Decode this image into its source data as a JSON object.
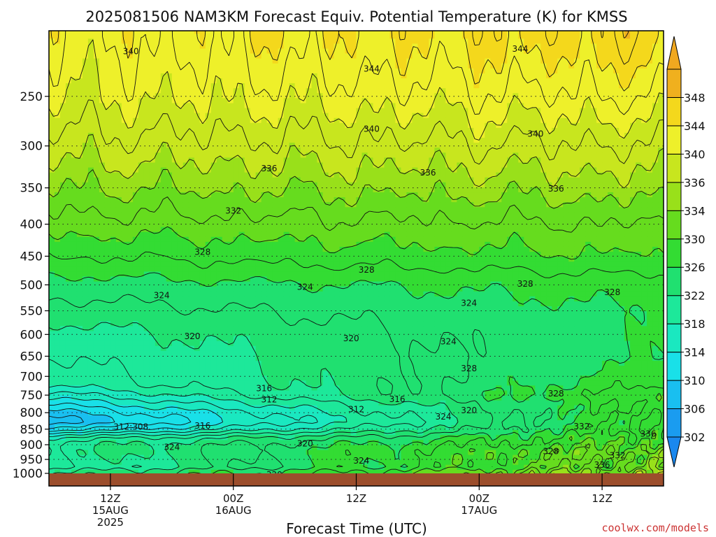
{
  "chart_data": {
    "type": "heatmap",
    "title": "2025081506 NAM3KM Forecast Equiv. Potential Temperature (K) for KMSS",
    "xlabel": "Forecast Time (UTC)",
    "ylabel": "",
    "x_axis": {
      "unit": "forecast hours from 2025-08-15 06Z",
      "range": [
        0,
        60
      ],
      "ticks": [
        {
          "hour": 6,
          "lines": [
            "12Z",
            "15AUG",
            "2025"
          ]
        },
        {
          "hour": 18,
          "lines": [
            "00Z",
            "16AUG"
          ]
        },
        {
          "hour": 30,
          "lines": [
            "12Z"
          ]
        },
        {
          "hour": 42,
          "lines": [
            "00Z",
            "17AUG"
          ]
        },
        {
          "hour": 54,
          "lines": [
            "12Z"
          ]
        }
      ]
    },
    "y_axis": {
      "unit": "hPa",
      "range": [
        1000,
        200
      ],
      "inverted": true,
      "ticks": [
        250,
        300,
        350,
        400,
        450,
        500,
        550,
        600,
        650,
        700,
        750,
        800,
        850,
        900,
        950,
        1000
      ],
      "grid": true
    },
    "colorbar": {
      "position": "right",
      "levels": [
        302,
        306,
        310,
        314,
        318,
        322,
        326,
        330,
        334,
        336,
        340,
        344,
        348
      ],
      "colors": [
        "#1a9cf0",
        "#19bff0",
        "#19e0e8",
        "#1ae8c0",
        "#1de89a",
        "#20e070",
        "#33dc33",
        "#66dc1e",
        "#99e01a",
        "#c8e61e",
        "#eef02a",
        "#f4d81c",
        "#f0b01e"
      ],
      "extend": "both"
    },
    "profile": {
      "pressure": [
        1000,
        975,
        950,
        925,
        900,
        875,
        850,
        825,
        800,
        775,
        750,
        725,
        700,
        650,
        600,
        550,
        500,
        450,
        400,
        350,
        300,
        250,
        200
      ],
      "theta_e_start": [
        322,
        319,
        320,
        321,
        321,
        318,
        311,
        307,
        309,
        312,
        315,
        318,
        319,
        320,
        321,
        323,
        325,
        328,
        331,
        334,
        337,
        340,
        342
      ],
      "theta_e_end": [
        336,
        333,
        333,
        333,
        331,
        330,
        329,
        329,
        329,
        329,
        330,
        328,
        327,
        326,
        326,
        326,
        327,
        330,
        332,
        335,
        338,
        342,
        346
      ]
    },
    "contour_labels": [
      {
        "text": "340",
        "x": 8.0,
        "p": 212
      },
      {
        "text": "344",
        "x": 31.5,
        "p": 226
      },
      {
        "text": "344",
        "x": 46.0,
        "p": 210
      },
      {
        "text": "340",
        "x": 31.5,
        "p": 282
      },
      {
        "text": "340",
        "x": 47.5,
        "p": 287
      },
      {
        "text": "336",
        "x": 21.5,
        "p": 326
      },
      {
        "text": "336",
        "x": 37.0,
        "p": 331
      },
      {
        "text": "336",
        "x": 49.5,
        "p": 351
      },
      {
        "text": "332",
        "x": 18.0,
        "p": 381
      },
      {
        "text": "328",
        "x": 15.0,
        "p": 443
      },
      {
        "text": "328",
        "x": 31.0,
        "p": 473
      },
      {
        "text": "328",
        "x": 46.5,
        "p": 498
      },
      {
        "text": "328",
        "x": 55.0,
        "p": 514
      },
      {
        "text": "324",
        "x": 11.0,
        "p": 520
      },
      {
        "text": "324",
        "x": 25.0,
        "p": 504
      },
      {
        "text": "324",
        "x": 41.0,
        "p": 535
      },
      {
        "text": "324",
        "x": 39.0,
        "p": 616
      },
      {
        "text": "328",
        "x": 41.0,
        "p": 680
      },
      {
        "text": "320",
        "x": 14.0,
        "p": 604
      },
      {
        "text": "320",
        "x": 29.5,
        "p": 609
      },
      {
        "text": "316",
        "x": 21.0,
        "p": 732
      },
      {
        "text": "312",
        "x": 21.5,
        "p": 762
      },
      {
        "text": "316",
        "x": 34.0,
        "p": 761
      },
      {
        "text": "312",
        "x": 30.0,
        "p": 790
      },
      {
        "text": "320",
        "x": 41.0,
        "p": 793
      },
      {
        "text": "324",
        "x": 38.5,
        "p": 812
      },
      {
        "text": "328",
        "x": 49.5,
        "p": 746
      },
      {
        "text": "332",
        "x": 52.0,
        "p": 842
      },
      {
        "text": "336",
        "x": 58.5,
        "p": 865
      },
      {
        "text": "312:308",
        "x": 8.0,
        "p": 843
      },
      {
        "text": "316",
        "x": 15.0,
        "p": 840
      },
      {
        "text": "324",
        "x": 12.0,
        "p": 908
      },
      {
        "text": "320",
        "x": 25.0,
        "p": 896
      },
      {
        "text": "324",
        "x": 30.5,
        "p": 955
      },
      {
        "text": "320",
        "x": 22.0,
        "p": 1005
      },
      {
        "text": "328",
        "x": 49.0,
        "p": 922
      },
      {
        "text": "332",
        "x": 55.5,
        "p": 937
      },
      {
        "text": "336",
        "x": 54.0,
        "p": 969
      }
    ]
  },
  "footer": {
    "credit": "coolwx.com/models"
  }
}
